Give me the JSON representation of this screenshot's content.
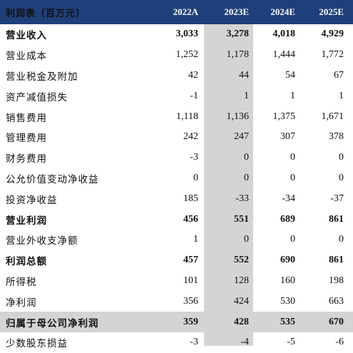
{
  "header": {
    "title": "利润表（百万元）",
    "years": [
      "2022A",
      "2023E",
      "2024E",
      "2025E"
    ]
  },
  "rows": [
    {
      "label": "营业收入",
      "values": [
        "3,033",
        "3,278",
        "4,018",
        "4,929"
      ],
      "bold": true
    },
    {
      "label": "营业成本",
      "values": [
        "1,252",
        "1,178",
        "1,444",
        "1,772"
      ]
    },
    {
      "label": "营业税金及附加",
      "values": [
        "42",
        "44",
        "54",
        "67"
      ]
    },
    {
      "label": "资产减值损失",
      "values": [
        "-1",
        "1",
        "1",
        "1"
      ]
    },
    {
      "label": "销售费用",
      "values": [
        "1,118",
        "1,136",
        "1,375",
        "1,671"
      ]
    },
    {
      "label": "管理费用",
      "values": [
        "242",
        "247",
        "307",
        "378"
      ]
    },
    {
      "label": "财务费用",
      "values": [
        "-3",
        "0",
        "0",
        "0"
      ]
    },
    {
      "label": "公允价值变动净收益",
      "values": [
        "0",
        "0",
        "0",
        "0"
      ]
    },
    {
      "label": "投资净收益",
      "values": [
        "185",
        "-33",
        "-34",
        "-37"
      ]
    },
    {
      "label": "营业利润",
      "values": [
        "456",
        "551",
        "689",
        "861"
      ],
      "bold": true
    },
    {
      "label": "营业外收支净额",
      "values": [
        "1",
        "0",
        "0",
        "0"
      ]
    },
    {
      "label": "利润总额",
      "values": [
        "457",
        "552",
        "690",
        "861"
      ],
      "bold": true
    },
    {
      "label": "所得税",
      "values": [
        "101",
        "128",
        "160",
        "198"
      ]
    },
    {
      "label": "净利润",
      "values": [
        "356",
        "424",
        "530",
        "663"
      ]
    },
    {
      "label": "归属于母公司净利润",
      "values": [
        "359",
        "428",
        "535",
        "670"
      ],
      "bold": true,
      "shaded": true
    },
    {
      "label": "少数股东损益",
      "values": [
        "-3",
        "-4",
        "-5",
        "-6"
      ]
    }
  ]
}
